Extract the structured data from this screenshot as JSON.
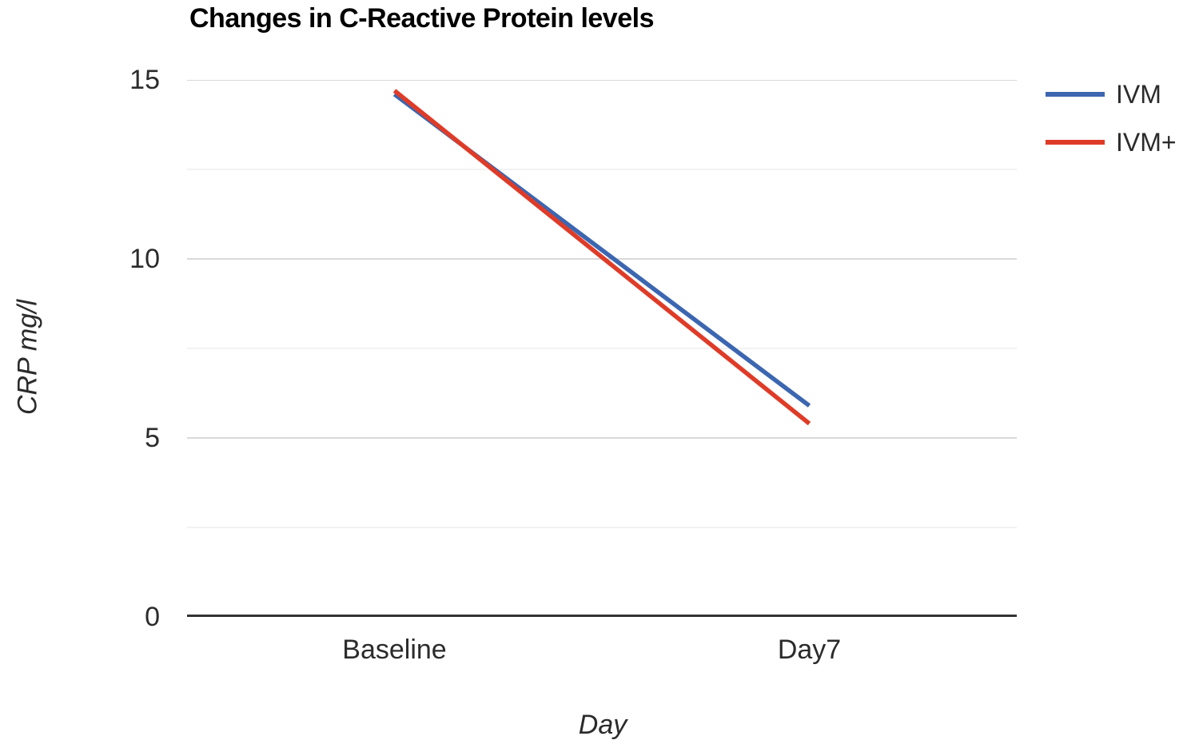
{
  "title": "Changes in C-Reactive Protein levels",
  "colors": {
    "series_ivm": "#3c66b0",
    "series_ivm_plus": "#de3c28",
    "grid_major": "#d9d9d9",
    "grid_minor": "#f2f2f2",
    "axis_line": "#333333",
    "tick_text": "#2b2b2b",
    "title_text": "#000000"
  },
  "chart_data": {
    "type": "line",
    "title": "Changes in C-Reactive Protein levels",
    "xlabel": "Day",
    "ylabel": "CRP mg/l",
    "categories": [
      "Baseline",
      "Day7"
    ],
    "series": [
      {
        "name": "IVM",
        "color": "#3c66b0",
        "values": [
          14.6,
          5.9
        ]
      },
      {
        "name": "IVM+",
        "color": "#de3c28",
        "values": [
          14.7,
          5.4
        ]
      }
    ],
    "ylim": [
      0,
      15
    ],
    "y_major_ticks": [
      15,
      10,
      5,
      0
    ],
    "y_minor_gridlines": [
      12.5,
      7.5,
      2.5
    ],
    "grid": true,
    "legend_position": "right"
  }
}
